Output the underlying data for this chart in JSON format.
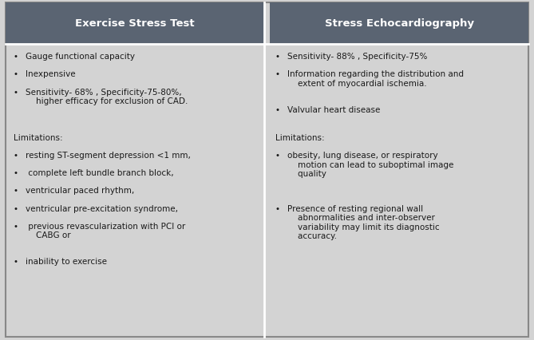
{
  "header_bg": "#5a6472",
  "header_text_color": "#ffffff",
  "body_bg": "#d3d3d3",
  "body_text_color": "#1a1a1a",
  "border_color": "#ffffff",
  "col1_header": "Exercise Stress Test",
  "col2_header": "Stress Echocardiography",
  "col1_bullets": [
    "Gauge functional capacity",
    "Inexpensive",
    "Sensitivity- 68% , Specificity-75-80%,\n    higher efficacy for exclusion of CAD."
  ],
  "col1_limitations_title": "Limitations:",
  "col1_limitations": [
    "resting ST-segment depression <1 mm,",
    " complete left bundle branch block,",
    "ventricular paced rhythm,",
    "ventricular pre-excitation syndrome,",
    " previous revascularization with PCI or\n    CABG or",
    "inability to exercise"
  ],
  "col2_bullets": [
    "Sensitivity- 88% , Specificity-75%",
    "Information regarding the distribution and\n    extent of myocardial ischemia.",
    "Valvular heart disease"
  ],
  "col2_limitations_title": "Limitations:",
  "col2_limitations": [
    "obesity, lung disease, or respiratory\n    motion can lead to suboptimal image\n    quality",
    "Presence of resting regional wall\n    abnormalities and inter-observer\n    variability may limit its diagnostic\n    accuracy."
  ],
  "figsize": [
    6.69,
    4.27
  ],
  "dpi": 100
}
